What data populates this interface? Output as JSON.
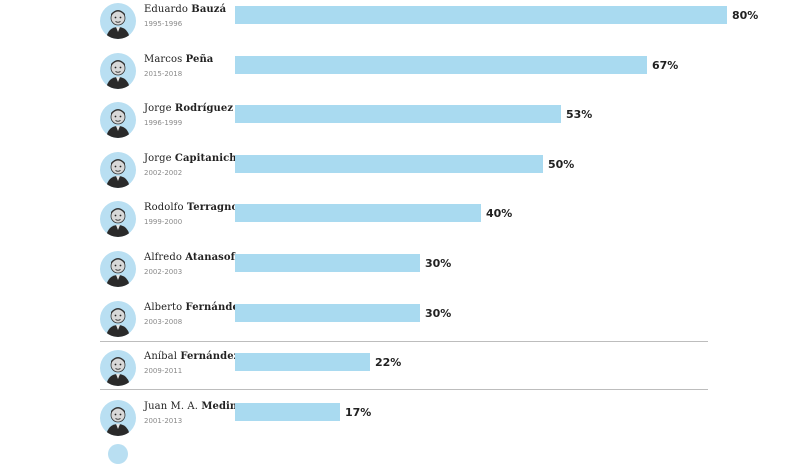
{
  "chart_data": {
    "type": "bar",
    "orientation": "horizontal",
    "categories": [
      "Eduardo Bauzá",
      "Marcos Peña",
      "Jorge Rodríguez",
      "Jorge Capitanich",
      "Rodolfo Terragno",
      "Alfredo Atanasof",
      "Alberto Fernández",
      "Aníbal Fernández",
      "Juan M. A. Medina"
    ],
    "values": [
      80,
      67,
      53,
      50,
      40,
      30,
      30,
      22,
      17
    ],
    "xlim": [
      0,
      100
    ],
    "colors": {
      "bar": "#a9daf0",
      "avatar_bg": "#b9dff2",
      "label": "#222222"
    },
    "rows": [
      {
        "first": "Eduardo",
        "last": "Bauzá",
        "years": "1995-1996",
        "label": "80%"
      },
      {
        "first": "Marcos",
        "last": "Peña",
        "years": "2015-2018",
        "label": "67%"
      },
      {
        "first": "Jorge",
        "last": "Rodríguez",
        "years": "1996-1999",
        "label": "53%"
      },
      {
        "first": "Jorge",
        "last": "Capitanich",
        "years": "2002-2002",
        "label": "50%"
      },
      {
        "first": "Rodolfo",
        "last": "Terragno",
        "years": "1999-2000",
        "label": "40%"
      },
      {
        "first": "Alfredo",
        "last": "Atanasof",
        "years": "2002-2003",
        "label": "30%"
      },
      {
        "first": "Alberto",
        "last": "Fernández",
        "years": "2003-2008",
        "label": "30%"
      },
      {
        "first": "Aníbal",
        "last": "Fernández",
        "years": "2009-2011",
        "label": "22%"
      },
      {
        "first": "Juan M. A.",
        "last": "Medina",
        "years": "2001-2013",
        "label": "17%"
      }
    ]
  }
}
